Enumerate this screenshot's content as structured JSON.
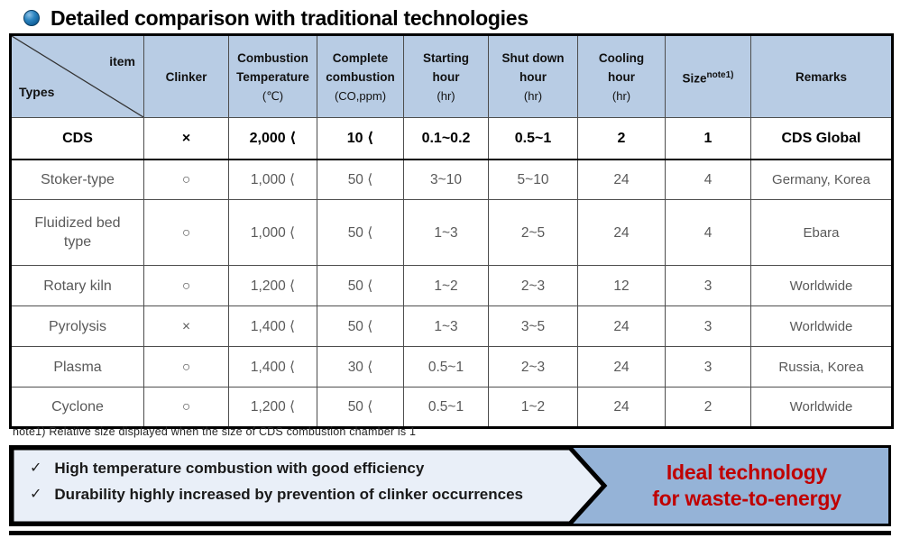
{
  "title": "Detailed comparison with traditional technologies",
  "table": {
    "corner": {
      "item": "item",
      "types": "Types"
    },
    "columns": [
      {
        "lines": [
          "Clinker"
        ],
        "unit": "",
        "sup": ""
      },
      {
        "lines": [
          "Combustion",
          "Temperature"
        ],
        "unit": "(℃)",
        "sup": ""
      },
      {
        "lines": [
          "Complete",
          "combustion"
        ],
        "unit": "(CO,ppm)",
        "sup": ""
      },
      {
        "lines": [
          "Starting",
          "hour"
        ],
        "unit": "(hr)",
        "sup": ""
      },
      {
        "lines": [
          "Shut down",
          "hour"
        ],
        "unit": "(hr)",
        "sup": ""
      },
      {
        "lines": [
          "Cooling",
          "hour"
        ],
        "unit": "(hr)",
        "sup": ""
      },
      {
        "lines": [
          "Size"
        ],
        "unit": "",
        "sup": "note1)"
      },
      {
        "lines": [
          "Remarks"
        ],
        "unit": "",
        "sup": ""
      }
    ],
    "rows": [
      {
        "type_lines": [
          "CDS"
        ],
        "emphasis": true,
        "values": [
          "×",
          "2,000 ⟨",
          "10 ⟨",
          "0.1~0.2",
          "0.5~1",
          "2",
          "1",
          "CDS Global"
        ]
      },
      {
        "type_lines": [
          "Stoker-type"
        ],
        "emphasis": false,
        "values": [
          "○",
          "1,000 ⟨",
          "50 ⟨",
          "3~10",
          "5~10",
          "24",
          "4",
          "Germany, Korea"
        ]
      },
      {
        "type_lines": [
          "Fluidized bed",
          "type"
        ],
        "emphasis": false,
        "values": [
          "○",
          "1,000 ⟨",
          "50 ⟨",
          "1~3",
          "2~5",
          "24",
          "4",
          "Ebara"
        ]
      },
      {
        "type_lines": [
          "Rotary kiln"
        ],
        "emphasis": false,
        "values": [
          "○",
          "1,200 ⟨",
          "50 ⟨",
          "1~2",
          "2~3",
          "12",
          "3",
          "Worldwide"
        ]
      },
      {
        "type_lines": [
          "Pyrolysis"
        ],
        "emphasis": false,
        "values": [
          "×",
          "1,400 ⟨",
          "50 ⟨",
          "1~3",
          "3~5",
          "24",
          "3",
          "Worldwide"
        ]
      },
      {
        "type_lines": [
          "Plasma"
        ],
        "emphasis": false,
        "values": [
          "○",
          "1,400 ⟨",
          "30 ⟨",
          "0.5~1",
          "2~3",
          "24",
          "3",
          "Russia, Korea"
        ]
      },
      {
        "type_lines": [
          "Cyclone"
        ],
        "emphasis": false,
        "values": [
          "○",
          "1,200 ⟨",
          "50 ⟨",
          "0.5~1",
          "1~2",
          "24",
          "2",
          "Worldwide"
        ]
      }
    ]
  },
  "note": "note1) Relative size displayed when the size of CDS combustion chamber is 1",
  "summary": {
    "check": "✓",
    "bullets": [
      "High temperature combustion with good efficiency",
      "Durability highly increased by prevention of clinker occurrences"
    ],
    "conclusion_lines": [
      "Ideal technology",
      "for waste-to-energy"
    ]
  },
  "colors": {
    "header_fill": "#b8cce4",
    "body_text": "#595959",
    "emphasis_text": "#000000",
    "summary_light": "#e9eff8",
    "summary_dark": "#95b3d7",
    "conclusion_red": "#c00000",
    "title_bullet_blue": "#1566a0"
  }
}
